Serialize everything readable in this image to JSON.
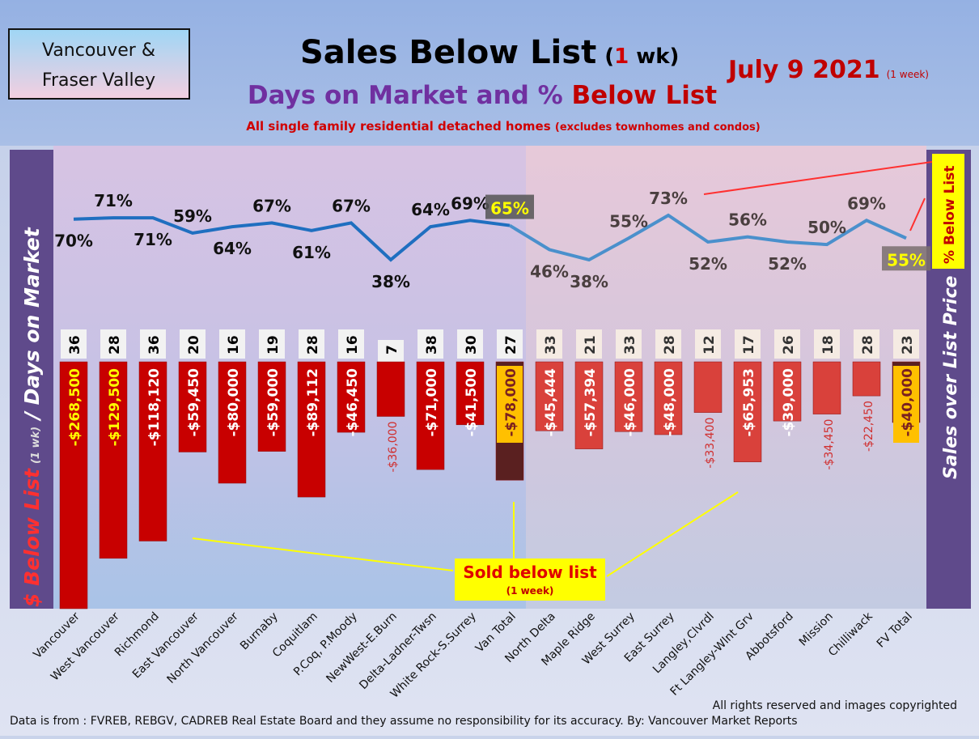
{
  "header": {
    "logo_line1": "Vancouver &",
    "logo_line2": "Fraser Valley",
    "title": "Sales Below List",
    "title_paren_open": "(",
    "title_paren_num": "1",
    "title_paren_rest": " wk)",
    "subtitle_part1": "Days on Market and % ",
    "subtitle_part2": "Below List",
    "description": "All single family residential detached homes",
    "description_note": "(excludes townhomes and condos)",
    "date": "July 9  2021",
    "date_note": "(1 week)"
  },
  "chart_data": {
    "type": "bar",
    "categories": [
      "Vancouver",
      "West Vancouver",
      "Richmond",
      "East Vancouver",
      "North Vancouver",
      "Burnaby",
      "Coquitlam",
      "P.Coq, P.Moody",
      "NewWest-E.Burn",
      "Delta-Ladner-Twsn",
      "White Rock-S.Surrey",
      "Van Total",
      "North Delta",
      "Maple Ridge",
      "West Surrey",
      "East Surrey",
      "Langley,Clvrdl",
      "Ft Langley-Wlnt Grv",
      "Abbotsford",
      "Mission",
      "Chilliwack",
      "FV Total"
    ],
    "series": [
      {
        "name": "% Below List",
        "type": "line",
        "values": [
          70,
          71,
          71,
          59,
          64,
          67,
          61,
          67,
          38,
          64,
          69,
          65,
          46,
          38,
          55,
          73,
          52,
          56,
          52,
          50,
          69,
          55
        ],
        "labels": [
          "70%",
          "71%",
          "71%",
          "59%",
          "64%",
          "67%",
          "61%",
          "67%",
          "38%",
          "64%",
          "69%",
          "65%",
          "46%",
          "38%",
          "55%",
          "73%",
          "52%",
          "56%",
          "52%",
          "50%",
          "69%",
          "55%"
        ]
      },
      {
        "name": "Days on Market",
        "type": "label",
        "values": [
          36,
          28,
          36,
          20,
          16,
          19,
          28,
          16,
          7,
          38,
          30,
          27,
          33,
          21,
          33,
          28,
          12,
          17,
          26,
          18,
          28,
          23
        ]
      },
      {
        "name": "$ Below List",
        "type": "bar",
        "values": [
          -268500,
          -129500,
          -118120,
          -59450,
          -80000,
          -59000,
          -89112,
          -46450,
          -36000,
          -71000,
          -41500,
          -78000,
          -45444,
          -57394,
          -46000,
          -48000,
          -33400,
          -65953,
          -39000,
          -34450,
          -22450,
          -40000
        ],
        "labels": [
          "-$268,500",
          "-$129,500",
          "-$118,120",
          "-$59,450",
          "-$80,000",
          "-$59,000",
          "-$89,112",
          "-$46,450",
          "-$36,000",
          "-$71,000",
          "-$41,500",
          "-$78,000",
          "-$45,444",
          "-$57,394",
          "-$46,000",
          "-$48,000",
          "-$33,400",
          "-$65,953",
          "-$39,000",
          "-$34,450",
          "-$22,450",
          "-$40,000"
        ]
      }
    ],
    "left_axis_label_part1": "$ Below List",
    "left_axis_label_note": "(1 wk)",
    "left_axis_label_part2": " / Days on Market",
    "right_axis_label": "Sales over List Price",
    "right_badge": "% Below List",
    "colors": {
      "van_bar": "#c80000",
      "fv_bar": "#d9413b",
      "total_bar": "#5a2020",
      "total_label_bg": "#ffc000",
      "van_line": "#1f6fc0",
      "fv_line": "#4a90cc"
    }
  },
  "annotation": {
    "line1": "Sold below list",
    "line2": "(1 week)"
  },
  "footer": {
    "copyright": "All rights reserved and  images copyrighted",
    "source": "Data is from : FVREB, REBGV, CADREB Real Estate Board and they assume no responsibility for its accuracy. By: Vancouver Market Reports"
  }
}
